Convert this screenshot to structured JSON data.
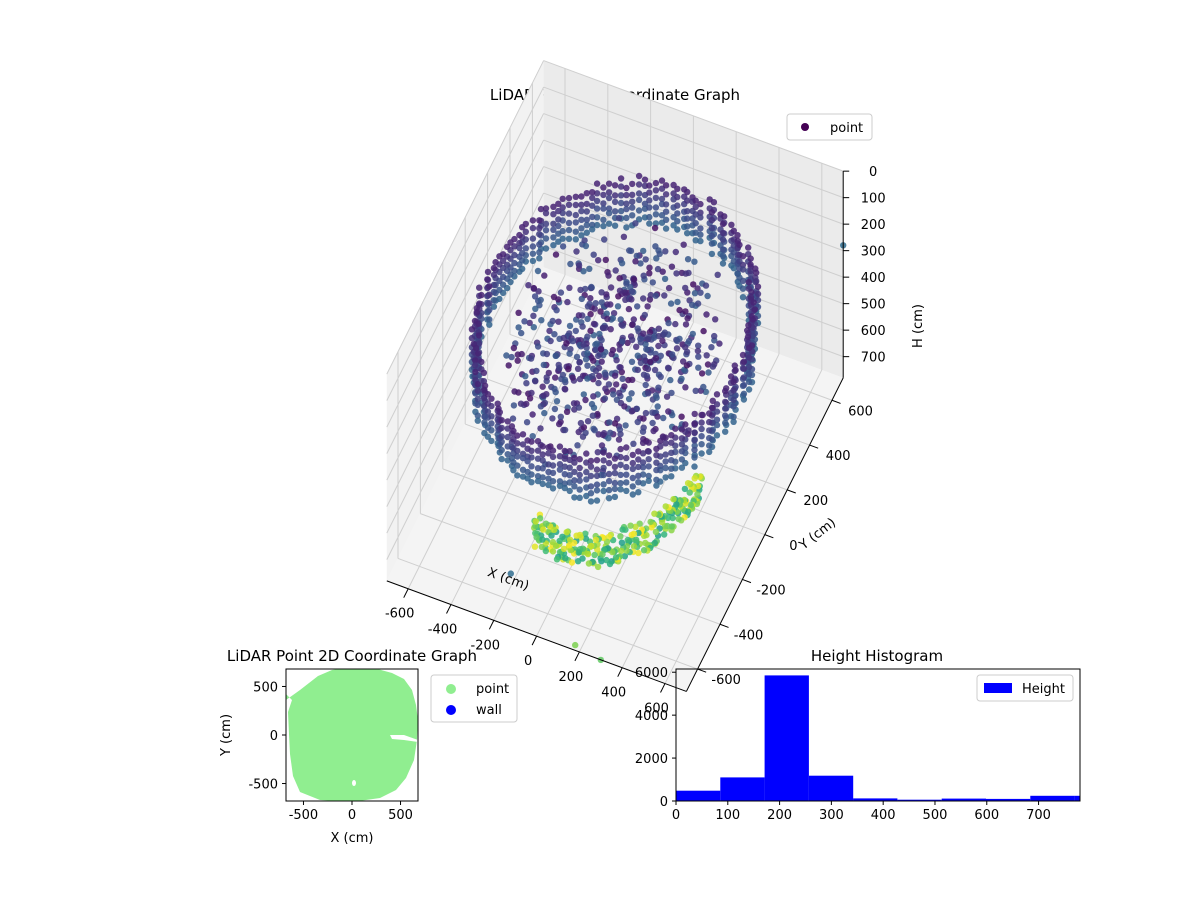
{
  "chart_data": [
    {
      "type": "scatter",
      "projection": "3d",
      "title": "LiDAR Point 3D Coordinate Graph",
      "xlabel": "X (cm)",
      "ylabel": "Y (cm)",
      "zlabel": "H (cm)",
      "xlim": [
        -700,
        700
      ],
      "ylim": [
        -700,
        700
      ],
      "zlim": [
        0,
        780
      ],
      "z_inverted": true,
      "xticks": [
        "-600",
        "-400",
        "-200",
        "0",
        "200",
        "400",
        "600"
      ],
      "yticks": [
        "-600",
        "-400",
        "-200",
        "0",
        "200",
        "400",
        "600"
      ],
      "zticks": [
        "0",
        "100",
        "200",
        "300",
        "400",
        "500",
        "600",
        "700"
      ],
      "colormap": "viridis",
      "grid": true,
      "legend": {
        "position": "top-right",
        "entries": [
          {
            "label": "point",
            "color": "#440154"
          }
        ]
      }
    },
    {
      "type": "scatter",
      "title": "LiDAR Point 2D Coordinate Graph",
      "xlabel": "X (cm)",
      "ylabel": "Y (cm)",
      "xlim": [
        -680,
        680
      ],
      "ylim": [
        -680,
        680
      ],
      "xticks": [
        "-500",
        "0",
        "500"
      ],
      "yticks": [
        "500",
        "0",
        "-500"
      ],
      "series": [
        {
          "name": "point",
          "color": "#90ee90",
          "extent_radius": 640
        },
        {
          "name": "wall",
          "color": "#0000ff",
          "points": []
        }
      ],
      "legend": {
        "position": "outside-right"
      }
    },
    {
      "type": "bar",
      "title": "Height Histogram",
      "xlabel": "",
      "ylabel": "",
      "bin_edges": [
        0,
        85.5,
        171,
        256.5,
        342,
        427.5,
        513,
        598.5,
        684,
        769.5,
        780
      ],
      "values": [
        480,
        1100,
        5850,
        1180,
        120,
        60,
        110,
        100,
        240,
        240
      ],
      "xlim": [
        0,
        780
      ],
      "ylim": [
        0,
        6150
      ],
      "xticks": [
        "0",
        "100",
        "200",
        "300",
        "400",
        "500",
        "600",
        "700"
      ],
      "yticks": [
        "0",
        "2000",
        "4000",
        "6000"
      ],
      "color": "#0000ff",
      "legend": {
        "position": "top-right",
        "entries": [
          {
            "label": "Height",
            "color": "#0000ff"
          }
        ]
      }
    }
  ]
}
